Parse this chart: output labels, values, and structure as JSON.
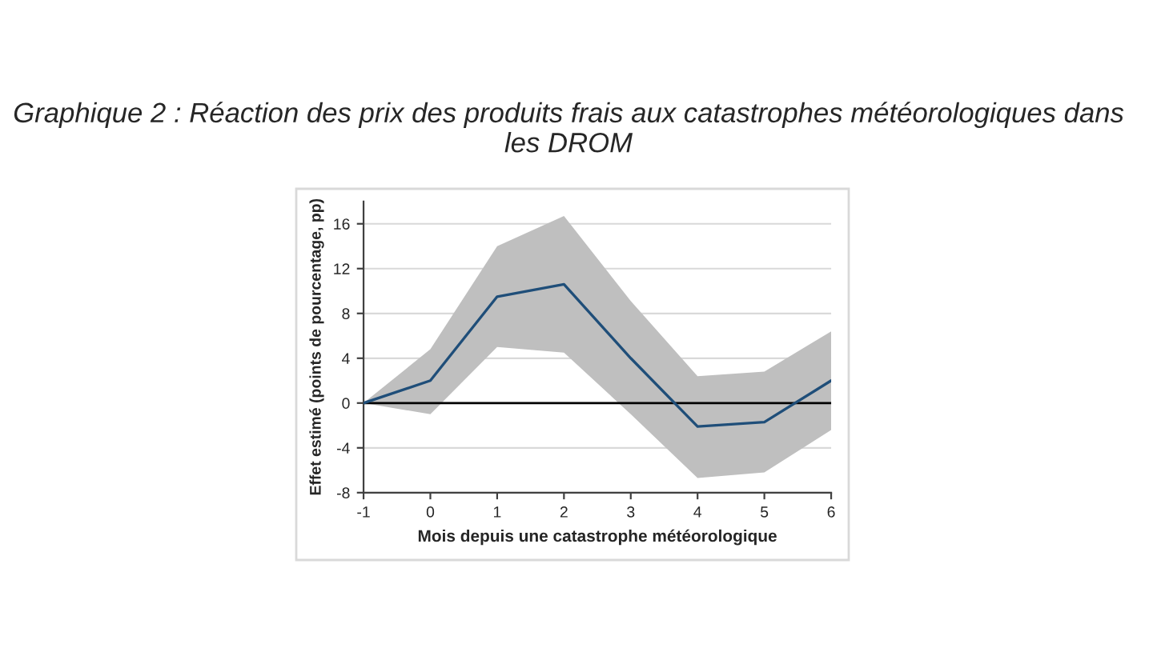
{
  "chart_data": {
    "type": "line",
    "title": "Graphique 2 : Réaction des prix des produits frais aux catastrophes météorologiques dans les DROM",
    "xlabel": "Mois depuis une catastrophe météorologique",
    "ylabel": "Effet estimé (points de pourcentage, pp)",
    "x": [
      -1,
      0,
      1,
      2,
      3,
      4,
      5,
      6
    ],
    "series": [
      {
        "color": "#1f4e79",
        "values": [
          0,
          2.0,
          9.5,
          10.6,
          4.0,
          -2.1,
          -1.7,
          2.0
        ],
        "lower": [
          0,
          -1.0,
          5.0,
          4.5,
          -1.0,
          -6.7,
          -6.2,
          -2.4
        ],
        "upper": [
          0,
          4.8,
          14.0,
          16.7,
          9.1,
          2.4,
          2.8,
          6.4
        ]
      }
    ],
    "xlim": [
      -1,
      6
    ],
    "xticks": [
      -1,
      0,
      1,
      2,
      3,
      4,
      5,
      6
    ],
    "ylim": [
      -8,
      18
    ],
    "yticks": [
      -8,
      -4,
      0,
      4,
      8,
      12,
      16
    ],
    "grid": "y",
    "ref_lines": [
      {
        "axis": "y",
        "value": 0,
        "color": "#000000"
      }
    ],
    "marker": "none",
    "line_style": "solid"
  }
}
